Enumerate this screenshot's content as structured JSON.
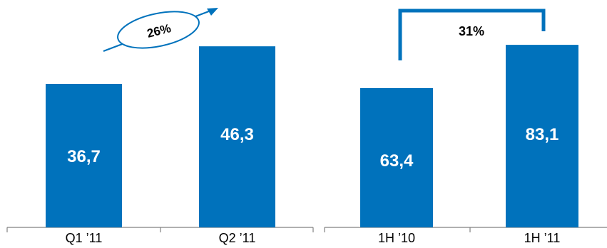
{
  "colors": {
    "bar": "#0072bc",
    "axis": "#808080",
    "label": "#ffffff",
    "tick": "#000000"
  },
  "chart_data": [
    {
      "type": "bar",
      "categories": [
        "Q1 '11",
        "Q2 '11"
      ],
      "tick_labels": [
        "Q1 ’11",
        "Q2 ’11"
      ],
      "values": [
        36.7,
        46.3
      ],
      "data_labels": [
        "36,7",
        "46,3"
      ],
      "annotation": {
        "kind": "growth-arrow-ellipse",
        "text": "26%"
      },
      "ylim": [
        0,
        52
      ]
    },
    {
      "type": "bar",
      "categories": [
        "1H '10",
        "1H '11"
      ],
      "tick_labels": [
        "1H ’10",
        "1H ’11"
      ],
      "values": [
        63.4,
        83.1
      ],
      "data_labels": [
        "63,4",
        "83,1"
      ],
      "annotation": {
        "kind": "bracket",
        "text": "31%"
      },
      "ylim": [
        0,
        91
      ]
    }
  ]
}
